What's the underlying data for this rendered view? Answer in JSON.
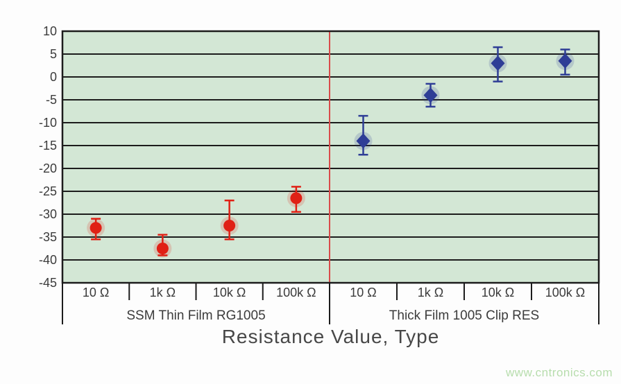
{
  "figure": {
    "xlabel": "Resistance Value, Type",
    "watermark": "www.cntronics.com"
  },
  "colors": {
    "plot_bg": "#d3e7d5",
    "grid": "#1c1c1c",
    "frame": "#1c1c1c",
    "divider": "#d94a4a",
    "axis_text": "#3b3b3b",
    "series_thin_film": "#e02015",
    "series_thick_film": "#2e3d96",
    "watermark": "#b7ddad"
  },
  "chart_data": {
    "type": "scatter",
    "title": "",
    "xlabel": "Resistance Value, Type",
    "ylabel": "",
    "ylim": [
      -45,
      10
    ],
    "ytick_step": 5,
    "yticks": [
      10,
      5,
      0,
      -5,
      -10,
      -15,
      -20,
      -25,
      -30,
      -35,
      -40,
      -45
    ],
    "grid": "horizontal",
    "legend": "none",
    "divider_between_groups": true,
    "groups": [
      {
        "label": "SSM Thin Film RG1005",
        "marker": "circle",
        "color_key": "series_thin_film",
        "categories": [
          "10 Ω",
          "1k Ω",
          "10k Ω",
          "100k Ω"
        ],
        "points": [
          {
            "category": "10 Ω",
            "value": -33,
            "err_low": -35.5,
            "err_high": -31
          },
          {
            "category": "1k Ω",
            "value": -37.5,
            "err_low": -39,
            "err_high": -34.5
          },
          {
            "category": "10k Ω",
            "value": -32.5,
            "err_low": -35.5,
            "err_high": -27
          },
          {
            "category": "100k Ω",
            "value": -26.5,
            "err_low": -29.5,
            "err_high": -24
          }
        ]
      },
      {
        "label": "Thick Film 1005 Clip RES",
        "marker": "diamond",
        "color_key": "series_thick_film",
        "categories": [
          "10 Ω",
          "1k Ω",
          "10k Ω",
          "100k Ω"
        ],
        "points": [
          {
            "category": "10 Ω",
            "value": -14,
            "err_low": -17,
            "err_high": -8.5
          },
          {
            "category": "1k Ω",
            "value": -4,
            "err_low": -6.5,
            "err_high": -1.5
          },
          {
            "category": "10k Ω",
            "value": 3,
            "err_low": -1,
            "err_high": 6.5
          },
          {
            "category": "100k Ω",
            "value": 3.5,
            "err_low": 0.5,
            "err_high": 6
          }
        ]
      }
    ]
  }
}
